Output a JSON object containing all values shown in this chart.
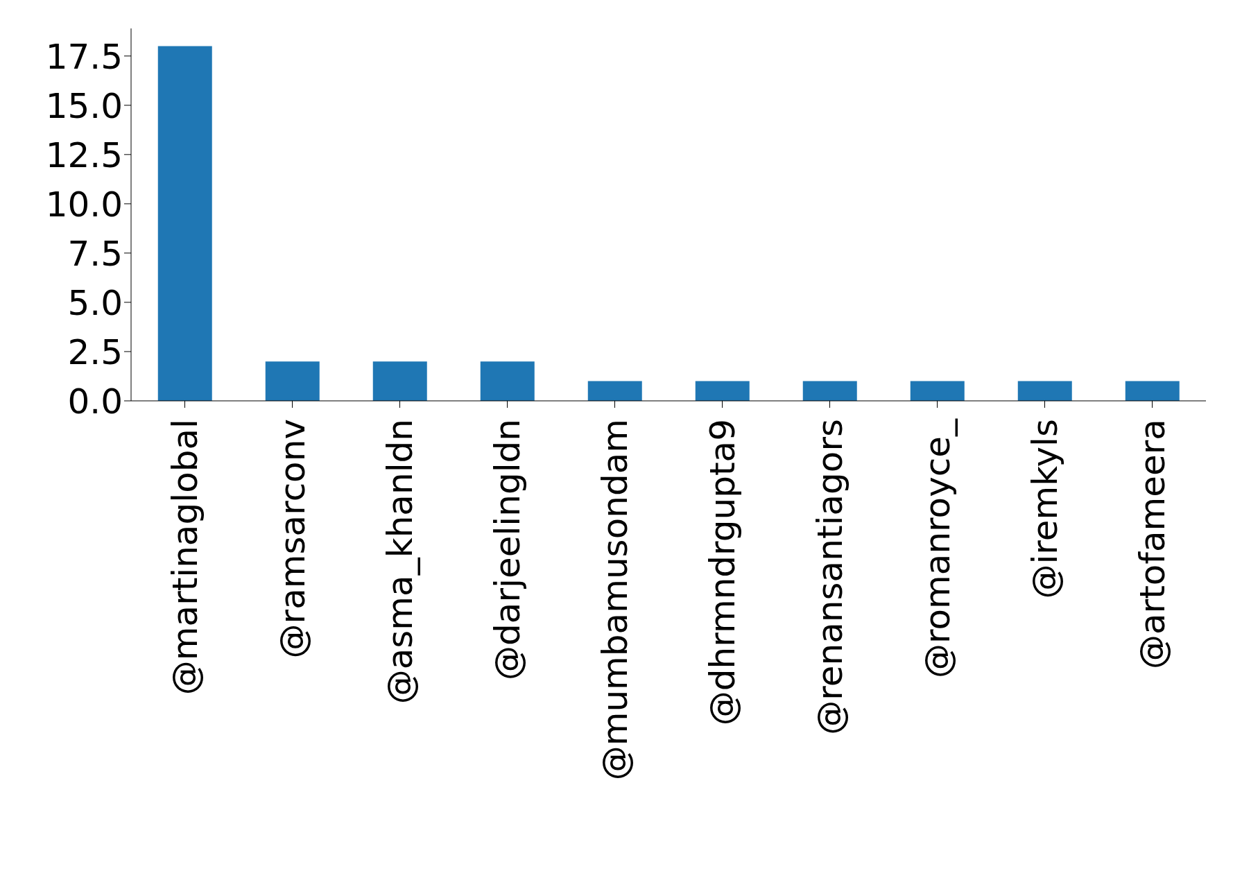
{
  "chart_data": {
    "type": "bar",
    "categories": [
      "@martinaglobal",
      "@ramsarconv",
      "@asma_khanldn",
      "@darjeelingldn",
      "@mumbamusondam",
      "@dhrmndrgupta9",
      "@renansantiagors",
      "@romanroyce_",
      "@iremkyls",
      "@artofameera"
    ],
    "values": [
      18,
      2,
      2,
      2,
      1,
      1,
      1,
      1,
      1,
      1
    ],
    "color": "#1f77b4",
    "ylim": [
      0,
      18.9
    ],
    "yticks": [
      {
        "value": 0,
        "label": "0.0"
      },
      {
        "value": 2.5,
        "label": "2.5"
      },
      {
        "value": 5,
        "label": "5.0"
      },
      {
        "value": 7.5,
        "label": "7.5"
      },
      {
        "value": 10,
        "label": "10.0"
      },
      {
        "value": 12.5,
        "label": "12.5"
      },
      {
        "value": 15,
        "label": "15.0"
      },
      {
        "value": 17.5,
        "label": "17.5"
      }
    ],
    "grid": false,
    "legend": false
  }
}
